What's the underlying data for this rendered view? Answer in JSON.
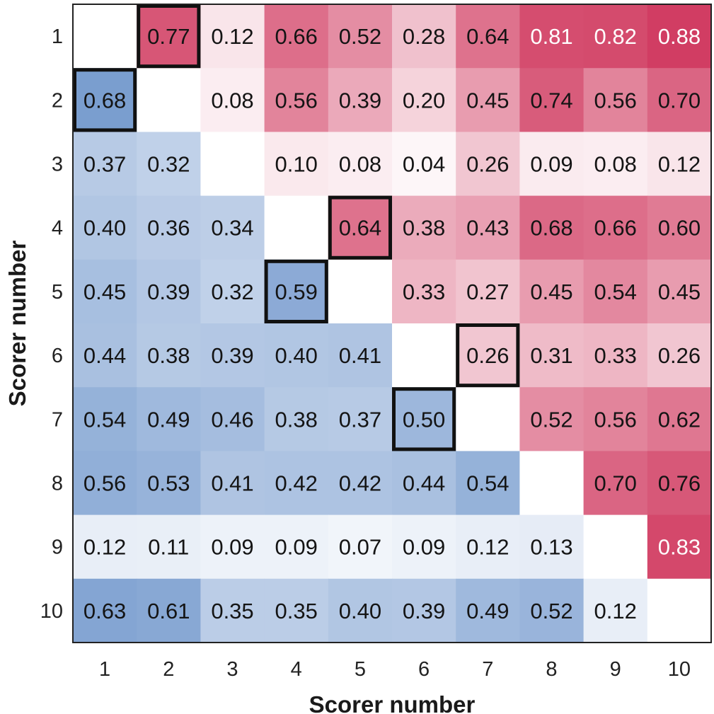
{
  "chart_data": {
    "type": "heatmap",
    "title": "",
    "xlabel": "Scorer number",
    "ylabel": "Scorer number",
    "x_ticks": [
      "1",
      "2",
      "3",
      "4",
      "5",
      "6",
      "7",
      "8",
      "9",
      "10"
    ],
    "y_ticks": [
      "1",
      "2",
      "3",
      "4",
      "5",
      "6",
      "7",
      "8",
      "9",
      "10"
    ],
    "values": [
      [
        null,
        "0.77",
        "0.12",
        "0.66",
        "0.52",
        "0.28",
        "0.64",
        "0.81",
        "0.82",
        "0.88"
      ],
      [
        "0.68",
        null,
        "0.08",
        "0.56",
        "0.39",
        "0.20",
        "0.45",
        "0.74",
        "0.56",
        "0.70"
      ],
      [
        "0.37",
        "0.32",
        null,
        "0.10",
        "0.08",
        "0.04",
        "0.26",
        "0.09",
        "0.08",
        "0.12"
      ],
      [
        "0.40",
        "0.36",
        "0.34",
        null,
        "0.64",
        "0.38",
        "0.43",
        "0.68",
        "0.66",
        "0.60"
      ],
      [
        "0.45",
        "0.39",
        "0.32",
        "0.59",
        null,
        "0.33",
        "0.27",
        "0.45",
        "0.54",
        "0.45"
      ],
      [
        "0.44",
        "0.38",
        "0.39",
        "0.40",
        "0.41",
        null,
        "0.26",
        "0.31",
        "0.33",
        "0.26"
      ],
      [
        "0.54",
        "0.49",
        "0.46",
        "0.38",
        "0.37",
        "0.50",
        null,
        "0.52",
        "0.56",
        "0.62"
      ],
      [
        "0.56",
        "0.53",
        "0.41",
        "0.42",
        "0.42",
        "0.44",
        "0.54",
        null,
        "0.70",
        "0.76"
      ],
      [
        "0.12",
        "0.11",
        "0.09",
        "0.09",
        "0.07",
        "0.09",
        "0.12",
        "0.13",
        null,
        "0.83"
      ],
      [
        "0.63",
        "0.61",
        "0.35",
        "0.35",
        "0.40",
        "0.39",
        "0.49",
        "0.52",
        "0.12",
        null
      ]
    ],
    "color_scale": {
      "lower_triangle": "#4f7ec0",
      "upper_triangle": "#d0395f",
      "empty": "#ffffff",
      "value_max": 0.9
    },
    "highlighted_cells": [
      [
        1,
        2
      ],
      [
        2,
        1
      ],
      [
        4,
        5
      ],
      [
        5,
        4
      ],
      [
        6,
        7
      ],
      [
        7,
        6
      ]
    ],
    "label_colors": {
      "default": "#141414",
      "light": "#ffffff"
    },
    "white_label_threshold": 0.8,
    "grid": false
  }
}
